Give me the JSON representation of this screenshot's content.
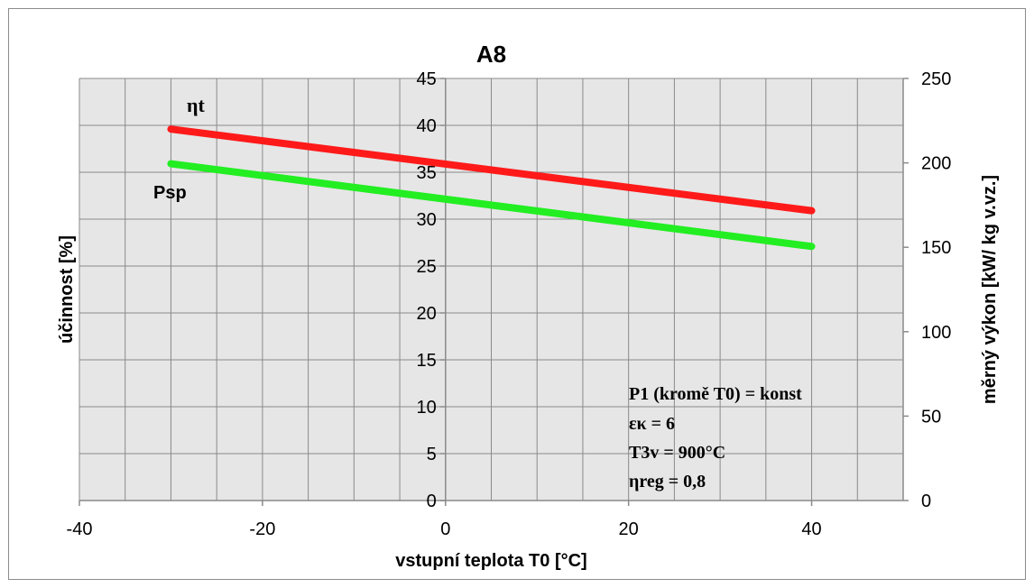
{
  "chart_data": {
    "type": "line",
    "title": "A8",
    "xlabel": "vstupní teplota T0 [°C]",
    "ylabel_left": "účinnost [%]",
    "ylabel_right": "měrný výkon [kW/ kg v.vz.]",
    "xlim": [
      -40,
      50
    ],
    "ylim_left": [
      0,
      45
    ],
    "ylim_right": [
      0,
      250
    ],
    "x_ticks": [
      "-40",
      "-20",
      "0",
      "20",
      "40"
    ],
    "y_left_ticks": [
      "0",
      "5",
      "10",
      "15",
      "20",
      "25",
      "30",
      "35",
      "40",
      "45"
    ],
    "y_right_ticks": [
      "0",
      "50",
      "100",
      "150",
      "200",
      "250"
    ],
    "grid": true,
    "series": [
      {
        "name": "ηt",
        "axis": "left",
        "color": "#ff1a1a",
        "x": [
          -30,
          40
        ],
        "y": [
          39.6,
          30.9
        ]
      },
      {
        "name": "Psp",
        "axis": "right",
        "color": "#22ee22",
        "x": [
          -30,
          40
        ],
        "y": [
          199.5,
          150.5
        ]
      }
    ],
    "annotation_lines": [
      "P1 (kromě T0) = konst",
      "εκ = 6",
      "T3v = 900°C",
      "ηreg = 0,8"
    ]
  }
}
